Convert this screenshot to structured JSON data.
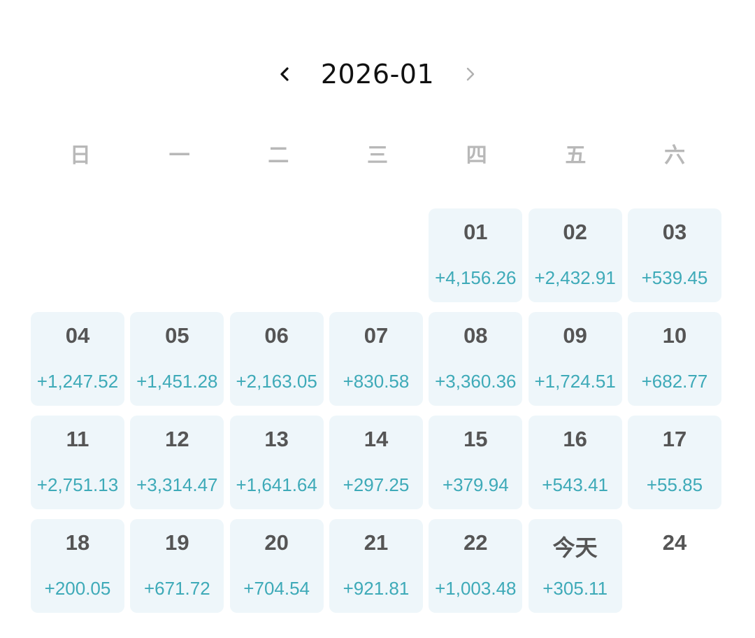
{
  "calendar": {
    "month_title": "2026-01",
    "prev_icon": "chevron-left-icon",
    "next_icon": "chevron-right-icon",
    "weekdays": [
      "日",
      "一",
      "二",
      "三",
      "四",
      "五",
      "六"
    ],
    "colors": {
      "accent": "#3eaab8",
      "cell_bg": "#eef6fa",
      "weekday": "#b8b8b8",
      "next_disabled": "#b0b0b0"
    },
    "days": [
      {
        "day": "01",
        "amount": "+4,156.26"
      },
      {
        "day": "02",
        "amount": "+2,432.91"
      },
      {
        "day": "03",
        "amount": "+539.45"
      },
      {
        "day": "04",
        "amount": "+1,247.52"
      },
      {
        "day": "05",
        "amount": "+1,451.28"
      },
      {
        "day": "06",
        "amount": "+2,163.05"
      },
      {
        "day": "07",
        "amount": "+830.58"
      },
      {
        "day": "08",
        "amount": "+3,360.36"
      },
      {
        "day": "09",
        "amount": "+1,724.51"
      },
      {
        "day": "10",
        "amount": "+682.77"
      },
      {
        "day": "11",
        "amount": "+2,751.13"
      },
      {
        "day": "12",
        "amount": "+3,314.47"
      },
      {
        "day": "13",
        "amount": "+1,641.64"
      },
      {
        "day": "14",
        "amount": "+297.25"
      },
      {
        "day": "15",
        "amount": "+379.94"
      },
      {
        "day": "16",
        "amount": "+543.41"
      },
      {
        "day": "17",
        "amount": "+55.85"
      },
      {
        "day": "18",
        "amount": "+200.05"
      },
      {
        "day": "19",
        "amount": "+671.72"
      },
      {
        "day": "20",
        "amount": "+704.54"
      },
      {
        "day": "21",
        "amount": "+921.81"
      },
      {
        "day": "22",
        "amount": "+1,003.48"
      },
      {
        "day": "今天",
        "amount": "+305.11"
      },
      {
        "day": "24",
        "amount": ""
      }
    ]
  }
}
